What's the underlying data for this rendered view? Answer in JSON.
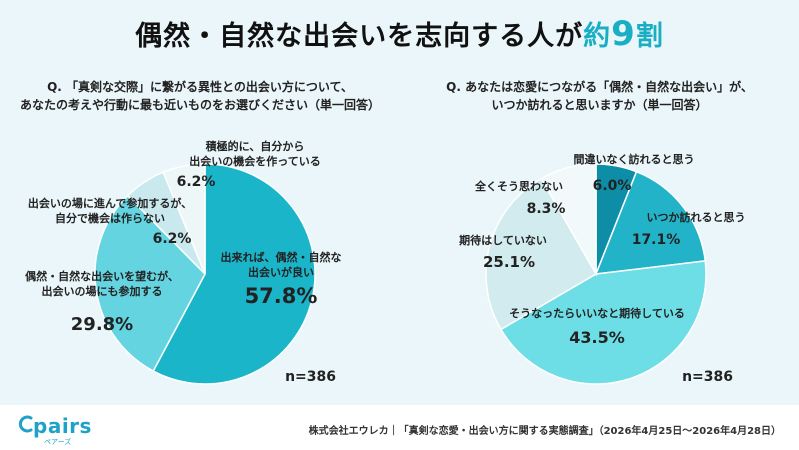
{
  "title": {
    "main": "偶然・自然な出会いを志向する人が",
    "highlight": "約",
    "number": "9",
    "suffix": "割"
  },
  "chart_data": [
    {
      "type": "pie",
      "title": "Q. 「真剣な交際」に繋がる異性との出会い方について、 あなたの考えや行動に最も近いものをお選びください（単一回答）",
      "title_lines": [
        "Q. 「真剣な交際」に繋がる異性との出会い方について、",
        "あなたの考えや行動に最も近いものをお選びください（単一回答）"
      ],
      "n_label": "n=386",
      "slices": [
        {
          "label_lines": [
            "出来れば、偶然・自然な",
            "出会いが良い"
          ],
          "value": 57.8,
          "value_label": "57.8%",
          "color": "#1bb5ca"
        },
        {
          "label_lines": [
            "偶然・自然な出会いを望むが、",
            "出会いの場にも参加する"
          ],
          "value": 29.8,
          "value_label": "29.8%",
          "color": "#63d4e0"
        },
        {
          "label_lines": [
            "出会いの場に進んで参加するが、",
            "自分で機会は作らない"
          ],
          "value": 6.2,
          "value_label": "6.2%",
          "color": "#c9e9ee"
        },
        {
          "label_lines": [
            "積極的に、自分から",
            "出会いの機会を作っている"
          ],
          "value": 6.2,
          "value_label": "6.2%",
          "color": "#eef7f8"
        }
      ]
    },
    {
      "type": "pie",
      "title": "Q. あなたは恋愛につながる「偶然・自然な出会い」が、 いつか訪れると思いますか（単一回答）",
      "title_lines": [
        "Q. あなたは恋愛につながる「偶然・自然な出会い」が、",
        "いつか訪れると思いますか（単一回答）"
      ],
      "n_label": "n=386",
      "slices": [
        {
          "label_lines": [
            "間違いなく訪れると思う"
          ],
          "value": 6.0,
          "value_label": "6.0%",
          "color": "#0d8ea6"
        },
        {
          "label_lines": [
            "いつか訪れると思う"
          ],
          "value": 17.1,
          "value_label": "17.1%",
          "color": "#22b3c9"
        },
        {
          "label_lines": [
            "そうなったらいいなと期待している"
          ],
          "value": 43.5,
          "value_label": "43.5%",
          "color": "#6ddde6"
        },
        {
          "label_lines": [
            "期待はしていない"
          ],
          "value": 25.1,
          "value_label": "25.1%",
          "color": "#d1ebef"
        },
        {
          "label_lines": [
            "全くそう思わない"
          ],
          "value": 8.3,
          "value_label": "8.3%",
          "color": "#f2f9fa"
        }
      ]
    }
  ],
  "footer": {
    "logo": "pairs",
    "logo_sub": "ペアーズ",
    "source": "株式会社エウレカ｜「真剣な恋愛・出会い方に関する実態調査」（2026年4月25日～2026年4月28日）"
  }
}
